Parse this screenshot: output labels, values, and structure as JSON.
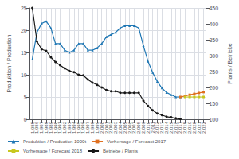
{
  "chart_data": {
    "type": "line",
    "xlim": [
      1984.5,
      2022.5
    ],
    "xticks": [
      1985,
      1986,
      1987,
      1988,
      1989,
      1990,
      1991,
      1992,
      1993,
      1994,
      1995,
      1996,
      1997,
      1998,
      1999,
      2000,
      2001,
      2002,
      2003,
      2004,
      2005,
      2006,
      2007,
      2008,
      2009,
      2010,
      2011,
      2012,
      2013,
      2014,
      2015,
      2016,
      2017,
      2018,
      2019,
      2020,
      2021,
      2022
    ],
    "ylim": [
      0,
      25
    ],
    "yticks": [
      0,
      5,
      10,
      15,
      20,
      25
    ],
    "y2lim": [
      100,
      450
    ],
    "y2ticks": [
      100,
      150,
      200,
      250,
      300,
      350,
      400,
      450
    ],
    "ylabel": "Produktion / Production",
    "y2label": "Plants / Betriebe",
    "grid": true,
    "legend": "lower left",
    "series": [
      {
        "name": "Produktion / Production 1000t",
        "color": "#1f77b4",
        "marker": "triangle",
        "x": [
          1985,
          1986,
          1987,
          1988,
          1989,
          1990,
          1991,
          1992,
          1993,
          1994,
          1995,
          1996,
          1997,
          1998,
          1999,
          2000,
          2001,
          2002,
          2003,
          2004,
          2005,
          2006,
          2007,
          2008,
          2009,
          2010,
          2011,
          2012,
          2013,
          2014,
          2015,
          2016,
          2017
        ],
        "values": [
          13.5,
          19.5,
          21.5,
          22.0,
          20.5,
          17.0,
          17.0,
          15.5,
          15.0,
          15.5,
          17.0,
          17.0,
          15.5,
          15.5,
          16.0,
          17.0,
          18.5,
          19.0,
          19.5,
          20.5,
          21.0,
          21.0,
          21.0,
          20.5,
          16.5,
          13.0,
          10.5,
          8.5,
          7.0,
          6.0,
          5.5,
          5.0,
          5.0
        ]
      },
      {
        "name": "Vorhersage / Forecast 2017",
        "color": "#e07020",
        "marker": "square",
        "x": [
          2017,
          2018,
          2019,
          2020,
          2021,
          2022
        ],
        "values": [
          5.0,
          5.2,
          5.5,
          5.7,
          5.9,
          6.1
        ]
      },
      {
        "name": "Vorhersage / Forecast 2018",
        "color": "#c8c820",
        "marker": "square",
        "x": [
          2018,
          2019,
          2020,
          2021,
          2022
        ],
        "values": [
          5.0,
          5.0,
          5.0,
          5.0,
          5.0
        ]
      },
      {
        "name": "Betriebe / Plants",
        "color": "#181818",
        "marker": "circle",
        "axis": "y2",
        "x": [
          1985,
          1986,
          1987,
          1988,
          1989,
          1990,
          1991,
          1992,
          1993,
          1994,
          1995,
          1996,
          1997,
          1998,
          1999,
          2000,
          2001,
          2002,
          2003,
          2004,
          2005,
          2006,
          2007,
          2008,
          2009,
          2010,
          2011,
          2012,
          2013,
          2014,
          2015,
          2016,
          2017
        ],
        "values": [
          450,
          345,
          320,
          315,
          295,
          280,
          270,
          260,
          252,
          248,
          240,
          238,
          225,
          215,
          208,
          200,
          192,
          188,
          188,
          183,
          183,
          183,
          183,
          183,
          158,
          142,
          128,
          118,
          113,
          108,
          106,
          103,
          101
        ]
      }
    ]
  }
}
